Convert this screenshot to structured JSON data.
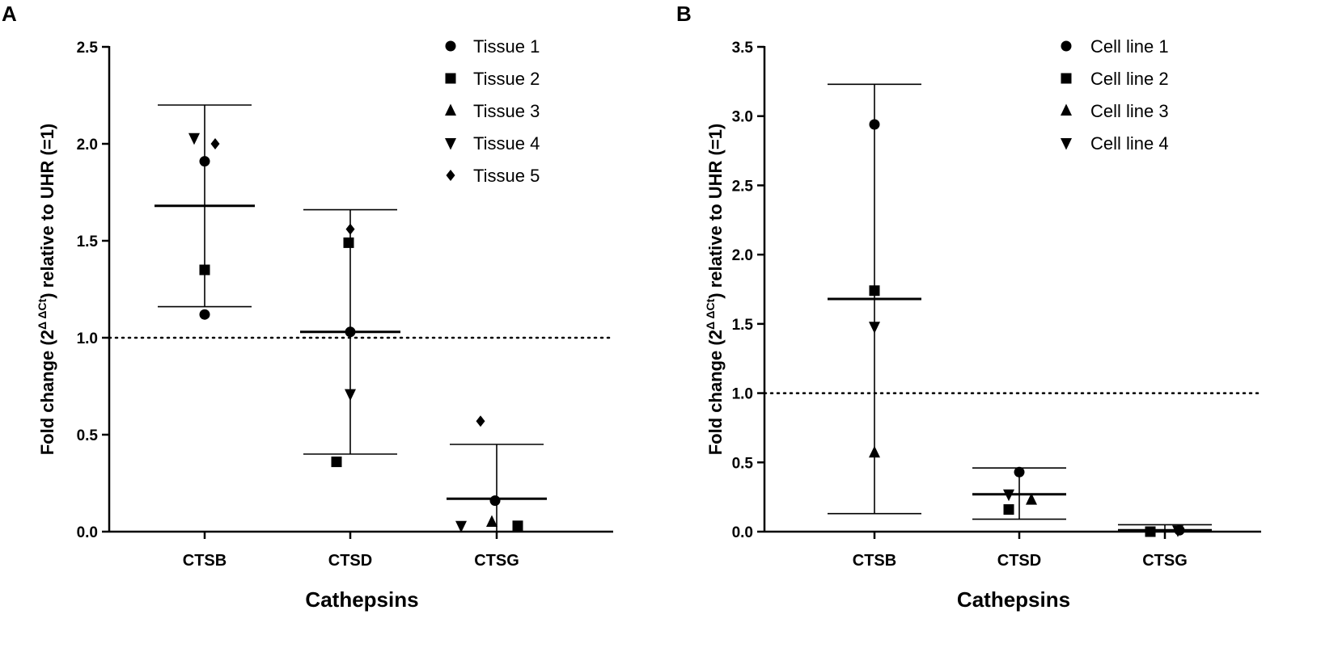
{
  "panels": [
    {
      "letter": "A"
    },
    {
      "letter": "B"
    }
  ],
  "chart_data": [
    {
      "type": "scatter",
      "panel": "A",
      "title": "",
      "xlabel": "Cathepsins",
      "ylabel_main": "Fold change (2",
      "ylabel_sup": "Δ ΔCt",
      "ylabel_rest": ") relative to UHR (=1)",
      "categories": [
        "CTSB",
        "CTSD",
        "CTSG"
      ],
      "ylim": [
        0,
        2.5
      ],
      "yticks": [
        "0.0",
        "0.5",
        "1.0",
        "1.5",
        "2.0",
        "2.5"
      ],
      "ytick_values": [
        0,
        0.5,
        1.0,
        1.5,
        2.0,
        2.5
      ],
      "reference_line": 1.0,
      "series": [
        {
          "name": "Tissue 1",
          "marker": "circle",
          "values": [
            1.91,
            1.03,
            0.16
          ],
          "extra": [
            {
              "category": "CTSB",
              "value": 1.12
            }
          ]
        },
        {
          "name": "Tissue 2",
          "marker": "square",
          "values": [
            1.35,
            1.49,
            0.03
          ],
          "extra": [
            {
              "category": "CTSD",
              "value": 0.36
            }
          ]
        },
        {
          "name": "Tissue 3",
          "marker": "triangle-up",
          "values": [
            null,
            null,
            0.05
          ],
          "extra": []
        },
        {
          "name": "Tissue 4",
          "marker": "triangle-down",
          "values": [
            2.03,
            0.71,
            0.03
          ],
          "extra": []
        },
        {
          "name": "Tissue 5",
          "marker": "diamond",
          "values": [
            2.0,
            1.56,
            0.57
          ],
          "extra": []
        }
      ],
      "summary": [
        {
          "category": "CTSB",
          "mean": 1.68,
          "lower": 1.16,
          "upper": 2.2
        },
        {
          "category": "CTSD",
          "mean": 1.03,
          "lower": 0.4,
          "upper": 1.66
        },
        {
          "category": "CTSG",
          "mean": 0.17,
          "lower": 0.0,
          "upper": 0.45
        }
      ],
      "legend_position": "top-right"
    },
    {
      "type": "scatter",
      "panel": "B",
      "title": "",
      "xlabel": "Cathepsins",
      "ylabel_main": "Fold change (2",
      "ylabel_sup": "Δ ΔCt",
      "ylabel_rest": ") relative to UHR (=1)",
      "categories": [
        "CTSB",
        "CTSD",
        "CTSG"
      ],
      "ylim": [
        0,
        3.5
      ],
      "yticks": [
        "0.0",
        "0.5",
        "1.0",
        "1.5",
        "2.0",
        "2.5",
        "3.0",
        "3.5"
      ],
      "ytick_values": [
        0,
        0.5,
        1.0,
        1.5,
        2.0,
        2.5,
        3.0,
        3.5
      ],
      "reference_line": 1.0,
      "series": [
        {
          "name": "Cell line 1",
          "marker": "circle",
          "values": [
            2.94,
            0.43,
            0.01
          ],
          "extra": []
        },
        {
          "name": "Cell line 2",
          "marker": "square",
          "values": [
            1.74,
            0.16,
            0.0
          ],
          "extra": []
        },
        {
          "name": "Cell line 3",
          "marker": "triangle-up",
          "values": [
            0.57,
            0.23,
            null
          ],
          "extra": []
        },
        {
          "name": "Cell line 4",
          "marker": "triangle-down",
          "values": [
            1.48,
            0.27,
            0.01
          ],
          "extra": []
        }
      ],
      "summary": [
        {
          "category": "CTSB",
          "mean": 1.68,
          "lower": 0.13,
          "upper": 3.23
        },
        {
          "category": "CTSD",
          "mean": 0.27,
          "lower": 0.09,
          "upper": 0.46
        },
        {
          "category": "CTSG",
          "mean": 0.01,
          "lower": 0.0,
          "upper": 0.05
        }
      ],
      "legend_position": "top-right"
    }
  ]
}
